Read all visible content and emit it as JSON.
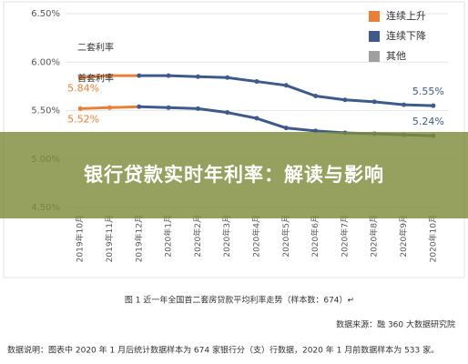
{
  "chart_data": {
    "type": "line",
    "categories": [
      "2019年10月",
      "2019年11月",
      "2019年12月",
      "2020年1月",
      "2020年2月",
      "2020年3月",
      "2020年4月",
      "2020年5月",
      "2020年6月",
      "2020年7月",
      "2020年8月",
      "2020年9月",
      "2020年10月"
    ],
    "series": [
      {
        "name": "二套利率",
        "colors": [
          "#e8803a",
          "#e8803a",
          "#3d5a8a",
          "#3d5a8a",
          "#3d5a8a",
          "#3d5a8a",
          "#3d5a8a",
          "#3d5a8a",
          "#3d5a8a",
          "#3d5a8a",
          "#3d5a8a",
          "#3d5a8a"
        ],
        "values": [
          5.84,
          5.86,
          5.86,
          5.86,
          5.85,
          5.84,
          5.8,
          5.76,
          5.65,
          5.61,
          5.59,
          5.56,
          5.55
        ],
        "value_labels": [
          "5.84%",
          null,
          null,
          null,
          null,
          null,
          null,
          null,
          null,
          null,
          null,
          null,
          "5.55%"
        ]
      },
      {
        "name": "首套利率",
        "colors": [
          "#e8803a",
          "#e8803a",
          "#3d5a8a",
          "#3d5a8a",
          "#3d5a8a",
          "#3d5a8a",
          "#3d5a8a",
          "#3d5a8a",
          "#3d5a8a",
          "#3d5a8a",
          "#3d5a8a",
          "#3d5a8a"
        ],
        "values": [
          5.52,
          5.53,
          5.54,
          5.53,
          5.52,
          5.48,
          5.42,
          5.32,
          5.29,
          5.27,
          5.26,
          5.25,
          5.24
        ],
        "value_labels": [
          "5.52%",
          null,
          null,
          null,
          null,
          null,
          null,
          null,
          null,
          null,
          null,
          null,
          "5.24%"
        ]
      }
    ],
    "legend": [
      {
        "name": "连续上升",
        "color": "#e8803a"
      },
      {
        "name": "连续下降",
        "color": "#3d5a8a"
      },
      {
        "name": "其他",
        "color": "#a0a0a0"
      }
    ],
    "ylim": [
      4.5,
      6.5
    ],
    "yticks": [
      {
        "value": 4.5,
        "label": "4.50%"
      },
      {
        "value": 5.0,
        "label": "5.00%"
      },
      {
        "value": 5.5,
        "label": "5.50%"
      },
      {
        "value": 6.0,
        "label": "6.00%"
      },
      {
        "value": 6.5,
        "label": "6.50%"
      }
    ],
    "grid": true,
    "caption": "图 1  近一年全国首二套房贷款平均利率走势（样本数：674）↵",
    "source": "数据来源：融 360 大数据研究院",
    "note": "数据说明：图表中 2020 年 1 月后统计数据样本为 674 家银行分（支）行数据，2020 年 1 月前数据样本为 533 家。"
  },
  "banner": {
    "title": "银行贷款实时年利率：解读与影响"
  }
}
